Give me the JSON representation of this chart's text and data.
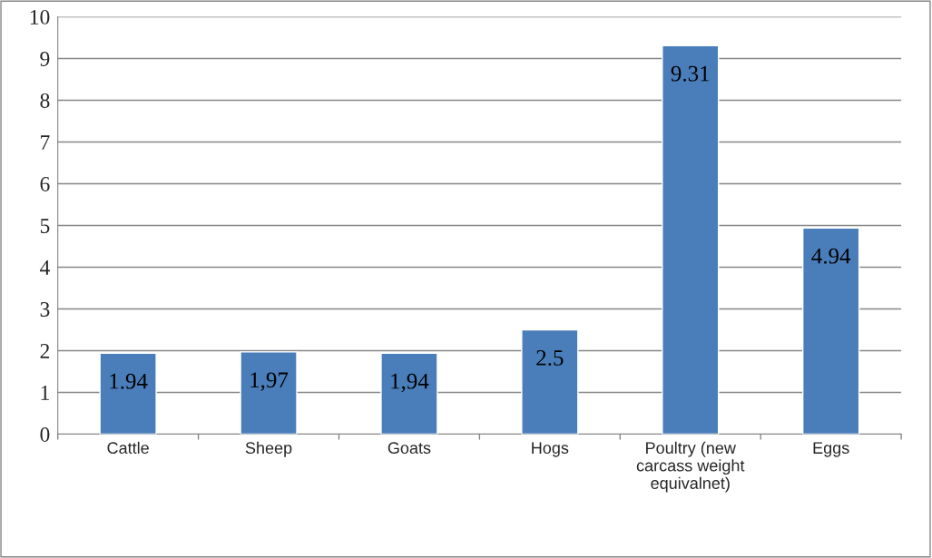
{
  "chart_data": {
    "type": "bar",
    "categories": [
      "Cattle",
      "Sheep",
      "Goats",
      "Hogs",
      "Poultry (new\ncarcass weight\nequivalnet)",
      "Eggs"
    ],
    "values": [
      1.94,
      1.97,
      1.94,
      2.5,
      9.31,
      4.94
    ],
    "value_labels": [
      "1.94",
      "1,97",
      "1,94",
      "2.5",
      "9.31",
      "4.94"
    ],
    "color": "#4a7ebb",
    "ylim": [
      0,
      10
    ],
    "yticks": [
      0,
      1,
      2,
      3,
      4,
      5,
      6,
      7,
      8,
      9,
      10
    ],
    "grid": "y"
  }
}
